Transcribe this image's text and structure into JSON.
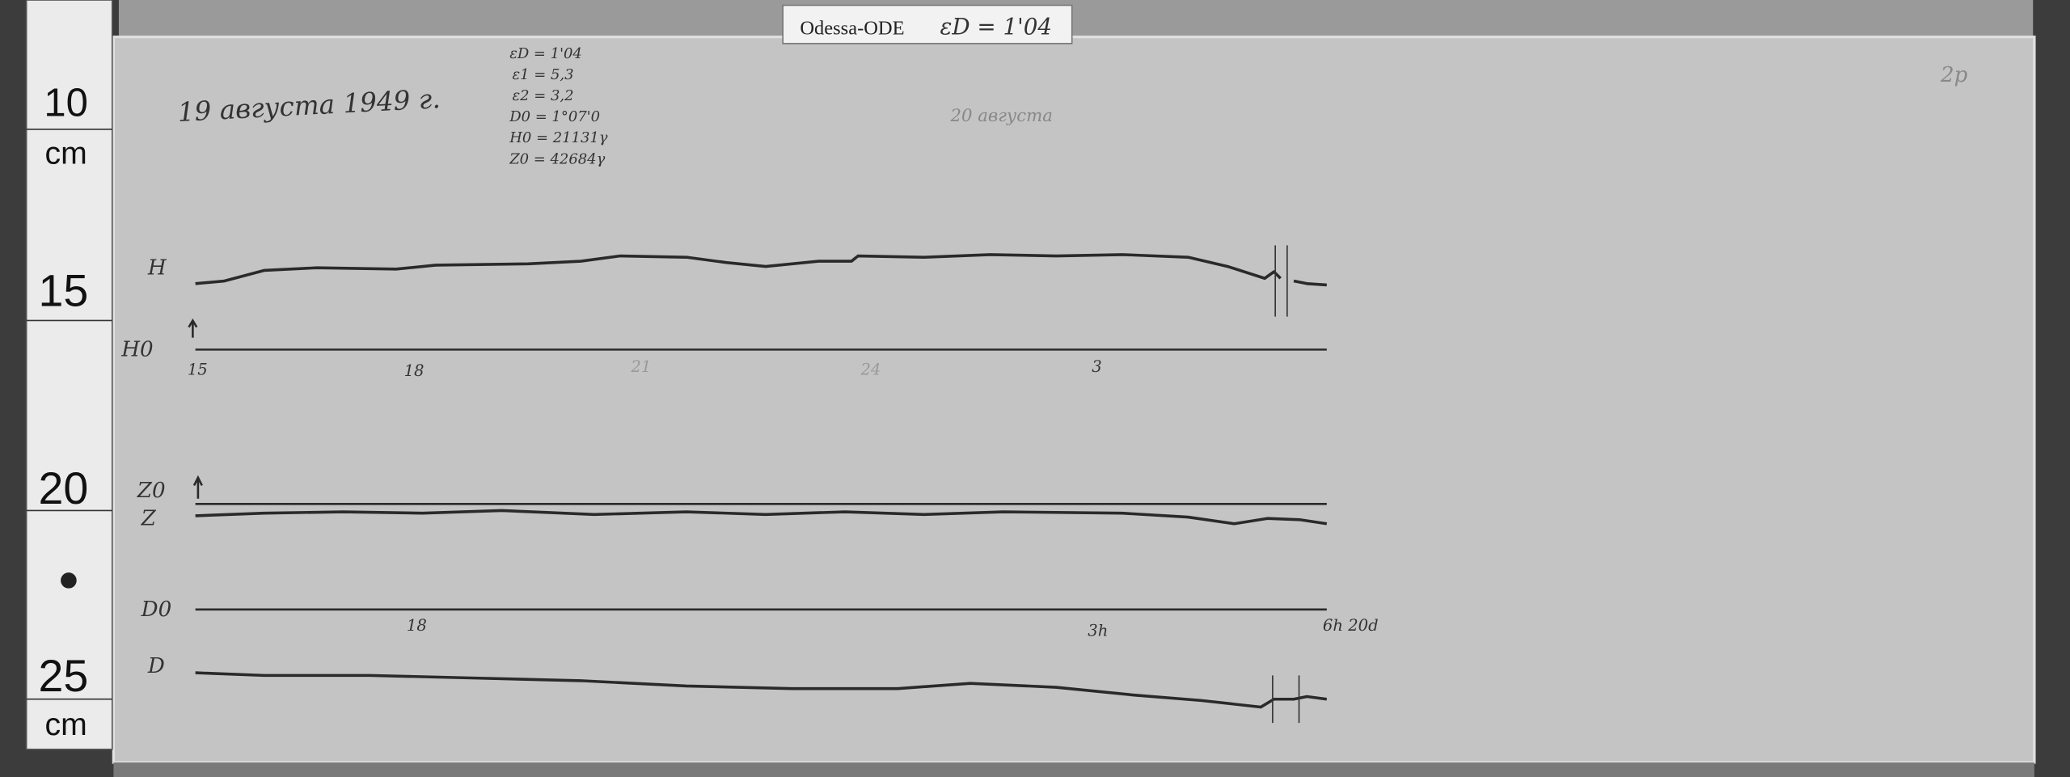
{
  "header": {
    "label": "Odessa-ODE",
    "epsilon": "εD = 1'04"
  },
  "ruler": {
    "marks": [
      "10",
      "cm",
      "15",
      "20",
      "25",
      "cm"
    ]
  },
  "notes": {
    "date_left": "19 августа 1949 г.",
    "date_right": "20 августа",
    "parameters": [
      "εD = 1'04",
      "ε1 = 5,3",
      "ε2 = 3,2",
      "D0 = 1°07'0",
      "H0 = 21131γ",
      "Z0 = 42684γ"
    ],
    "corner": "2р"
  },
  "traces": {
    "labels": [
      "H",
      "H0",
      "Z0",
      "Z",
      "D0",
      "D"
    ]
  },
  "hours": {
    "h_line": [
      "15",
      "18",
      "21",
      "24",
      "3"
    ],
    "d_line": [
      "18",
      "3h",
      "6h 20d"
    ]
  }
}
